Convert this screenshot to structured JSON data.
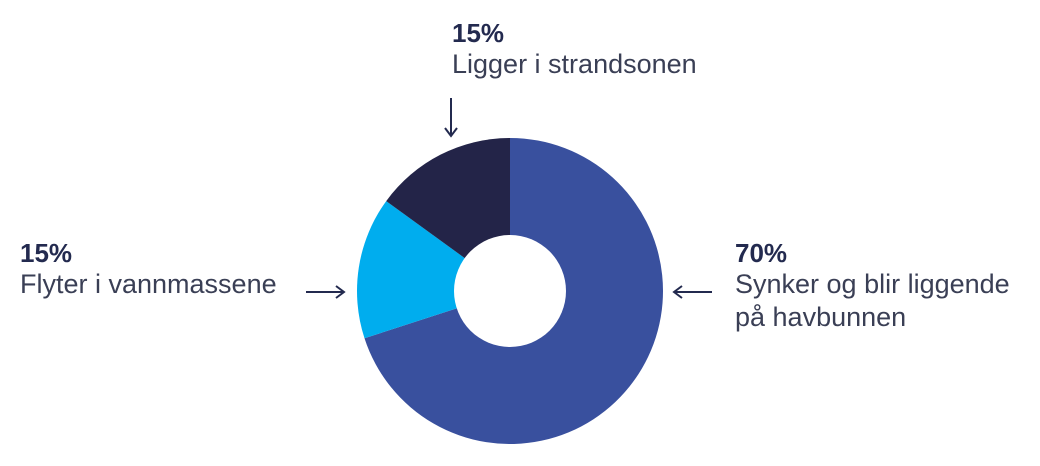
{
  "colors": {
    "text": "#232a4f",
    "arrow": "#232a4f",
    "slice_sinks": "#39509e",
    "slice_floats": "#00adee",
    "slice_beach": "#232448"
  },
  "chart_data": {
    "type": "pie",
    "donut": true,
    "title": "",
    "slices": [
      {
        "value": 70,
        "label": "70%",
        "description": [
          "Synker og blir liggende",
          "på havbunnen"
        ],
        "color": "#39509e"
      },
      {
        "value": 15,
        "label": "15%",
        "description": [
          "Flyter i vannmassene"
        ],
        "color": "#00adee"
      },
      {
        "value": 15,
        "label": "15%",
        "description": [
          "Ligger i strandsonen"
        ],
        "color": "#232448"
      }
    ]
  }
}
